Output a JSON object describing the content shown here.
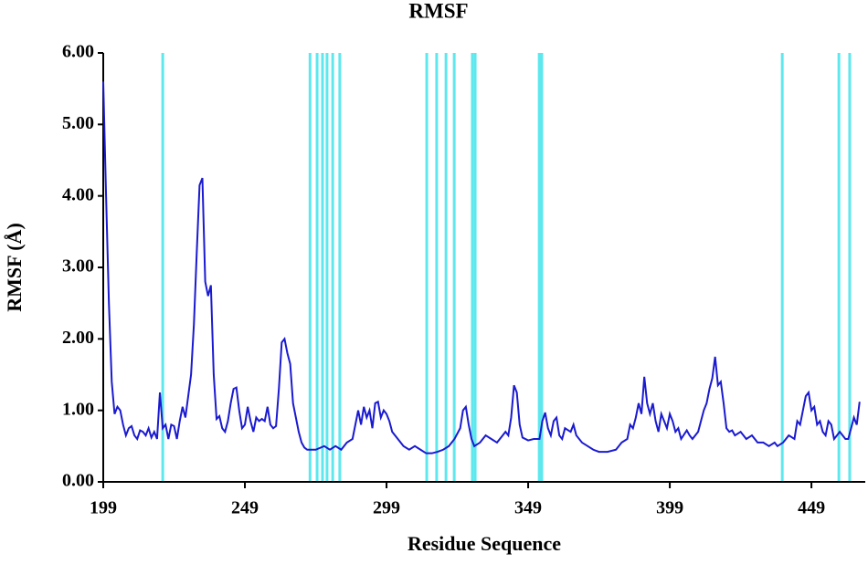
{
  "chart_data": {
    "type": "line",
    "title": "RMSF",
    "xlabel": "Residue Sequence",
    "ylabel": "RMSF (Å)",
    "xlim": [
      199,
      468
    ],
    "xticks": [
      199,
      249,
      299,
      349,
      399,
      449
    ],
    "ylim": [
      0,
      6
    ],
    "yticks": [
      {
        "value": 0,
        "label": "0.00"
      },
      {
        "value": 1,
        "label": "1.00"
      },
      {
        "value": 2,
        "label": "2.00"
      },
      {
        "value": 3,
        "label": "3.00"
      },
      {
        "value": 4,
        "label": "4.00"
      },
      {
        "value": 5,
        "label": "5.00"
      },
      {
        "value": 6,
        "label": "6.00"
      }
    ],
    "highlights": {
      "color": "#5ee8ee",
      "x": [
        220,
        272,
        274.5,
        276.4,
        278,
        280,
        282.5,
        313.2,
        316.7,
        320,
        322.9,
        329.3,
        330.3,
        352.9,
        353.8,
        438.7,
        458.7,
        462.5
      ]
    },
    "series": [
      {
        "color": "#1a1ad0",
        "x": [
          199,
          200,
          201,
          202,
          203,
          204,
          205,
          206,
          207,
          208,
          209,
          210,
          211,
          212,
          213,
          214,
          215,
          216,
          217,
          218,
          219,
          220,
          221,
          222,
          223,
          224,
          225,
          226,
          227,
          228,
          229,
          230,
          231,
          232,
          233,
          234,
          235,
          236,
          237,
          238,
          239,
          240,
          241,
          242,
          243,
          244,
          245,
          246,
          247,
          248,
          249,
          250,
          251,
          252,
          253,
          254,
          255,
          256,
          257,
          258,
          259,
          260,
          261,
          262,
          263,
          264,
          265,
          266,
          267,
          268,
          269,
          270,
          271,
          274,
          277,
          279,
          281,
          283,
          285,
          287,
          289,
          290,
          291,
          292,
          293,
          294,
          295,
          296,
          297,
          298,
          299,
          300,
          301,
          303,
          305,
          307,
          309,
          311,
          313,
          315,
          317,
          319,
          321,
          323,
          325,
          326,
          327,
          328,
          329,
          330,
          332,
          334,
          336,
          338,
          340,
          341,
          342,
          343,
          344,
          345,
          346,
          347,
          349,
          351,
          353,
          354,
          355,
          356,
          357,
          358,
          359,
          360,
          361,
          362,
          364,
          365,
          366,
          368,
          370,
          372,
          374,
          377,
          380,
          382,
          384,
          385,
          386,
          387,
          388,
          389,
          390,
          391,
          392,
          393,
          394,
          395,
          396,
          397,
          398,
          399,
          400,
          401,
          402,
          403,
          405,
          406,
          407,
          409,
          410,
          411,
          412,
          413,
          414,
          415,
          416,
          417,
          418,
          419,
          420,
          421,
          422,
          424,
          426,
          428,
          430,
          432,
          434,
          436,
          437,
          439,
          441,
          443,
          444,
          445,
          446,
          447,
          448,
          449,
          450,
          451,
          452,
          453,
          454,
          455,
          456,
          457,
          458,
          459,
          461,
          462,
          463,
          464,
          465,
          466
        ],
        "values": [
          5.6,
          4.0,
          2.5,
          1.4,
          0.95,
          1.05,
          1.0,
          0.8,
          0.65,
          0.75,
          0.78,
          0.65,
          0.6,
          0.72,
          0.7,
          0.65,
          0.75,
          0.62,
          0.7,
          0.6,
          1.25,
          0.75,
          0.8,
          0.6,
          0.8,
          0.78,
          0.6,
          0.85,
          1.05,
          0.9,
          1.2,
          1.5,
          2.2,
          3.2,
          4.15,
          4.25,
          2.8,
          2.6,
          2.75,
          1.5,
          0.88,
          0.92,
          0.75,
          0.7,
          0.85,
          1.1,
          1.3,
          1.32,
          1.0,
          0.75,
          0.8,
          1.05,
          0.85,
          0.7,
          0.9,
          0.85,
          0.88,
          0.85,
          1.05,
          0.8,
          0.75,
          0.78,
          1.3,
          1.95,
          2.0,
          1.8,
          1.65,
          1.1,
          0.9,
          0.7,
          0.55,
          0.48,
          0.45,
          0.45,
          0.5,
          0.45,
          0.5,
          0.45,
          0.55,
          0.6,
          1.0,
          0.8,
          1.05,
          0.9,
          1.0,
          0.75,
          1.1,
          1.12,
          0.9,
          1.0,
          0.95,
          0.85,
          0.7,
          0.6,
          0.5,
          0.45,
          0.5,
          0.45,
          0.4,
          0.4,
          0.42,
          0.45,
          0.5,
          0.6,
          0.75,
          1.0,
          1.05,
          0.8,
          0.6,
          0.5,
          0.55,
          0.65,
          0.6,
          0.55,
          0.65,
          0.7,
          0.65,
          0.9,
          1.35,
          1.25,
          0.8,
          0.62,
          0.58,
          0.6,
          0.6,
          0.85,
          0.97,
          0.75,
          0.65,
          0.85,
          0.9,
          0.65,
          0.6,
          0.75,
          0.7,
          0.8,
          0.65,
          0.55,
          0.5,
          0.45,
          0.42,
          0.42,
          0.45,
          0.55,
          0.6,
          0.8,
          0.75,
          0.9,
          1.1,
          0.95,
          1.47,
          1.1,
          0.95,
          1.1,
          0.85,
          0.7,
          0.95,
          0.85,
          0.75,
          0.95,
          0.85,
          0.7,
          0.75,
          0.6,
          0.72,
          0.65,
          0.6,
          0.7,
          0.85,
          1.0,
          1.1,
          1.3,
          1.45,
          1.75,
          1.35,
          1.4,
          1.1,
          0.75,
          0.7,
          0.72,
          0.65,
          0.7,
          0.6,
          0.65,
          0.55,
          0.55,
          0.5,
          0.55,
          0.5,
          0.55,
          0.65,
          0.6,
          0.85,
          0.8,
          1.0,
          1.2,
          1.25,
          1.0,
          1.05,
          0.8,
          0.85,
          0.7,
          0.65,
          0.85,
          0.8,
          0.6,
          0.65,
          0.7,
          0.6,
          0.6,
          0.75,
          0.9,
          0.8,
          1.12
        ]
      }
    ]
  }
}
